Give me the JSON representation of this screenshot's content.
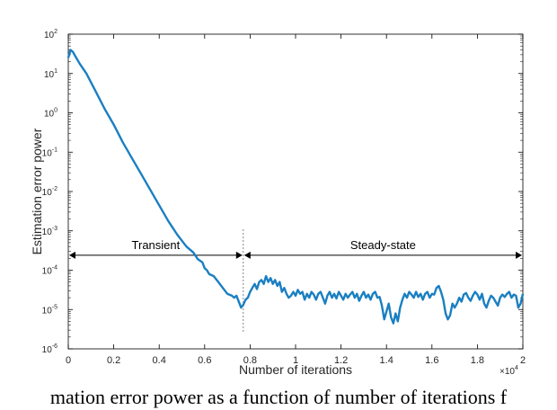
{
  "chart_data": {
    "type": "line",
    "xlabel": "Number of iterations",
    "ylabel": "Estimation error power",
    "x_scale_label": "×10",
    "x_scale_exp": "4",
    "xlim": [
      0,
      2
    ],
    "ylim_log10": [
      -6,
      2
    ],
    "y_scale": "log",
    "grid": false,
    "x_ticks": [
      "0",
      "0.2",
      "0.4",
      "0.6",
      "0.8",
      "1",
      "1.2",
      "1.4",
      "1.6",
      "1.8",
      "2"
    ],
    "y_ticks": [
      {
        "exp": 2
      },
      {
        "exp": 1
      },
      {
        "exp": 0
      },
      {
        "exp": -1
      },
      {
        "exp": -2
      },
      {
        "exp": -3
      },
      {
        "exp": -4
      },
      {
        "exp": -5
      },
      {
        "exp": -6
      }
    ],
    "line_color": "#1a7fc1",
    "annotations": {
      "transient_label": "Transient",
      "steady_label": "Steady-state",
      "divider_x": 0.77,
      "arrow_y_log10": -3.62
    },
    "series": [
      {
        "points": [
          [
            0.0,
            1.4
          ],
          [
            0.01,
            1.6
          ],
          [
            0.02,
            1.55
          ],
          [
            0.03,
            1.45
          ],
          [
            0.05,
            1.25
          ],
          [
            0.08,
            1.0
          ],
          [
            0.12,
            0.55
          ],
          [
            0.16,
            0.1
          ],
          [
            0.2,
            -0.3
          ],
          [
            0.24,
            -0.75
          ],
          [
            0.28,
            -1.15
          ],
          [
            0.32,
            -1.55
          ],
          [
            0.36,
            -1.95
          ],
          [
            0.4,
            -2.35
          ],
          [
            0.44,
            -2.75
          ],
          [
            0.48,
            -3.1
          ],
          [
            0.52,
            -3.4
          ],
          [
            0.55,
            -3.55
          ],
          [
            0.57,
            -3.72
          ],
          [
            0.59,
            -3.8
          ],
          [
            0.6,
            -3.95
          ],
          [
            0.61,
            -4.0
          ],
          [
            0.62,
            -4.1
          ],
          [
            0.64,
            -4.15
          ],
          [
            0.66,
            -4.3
          ],
          [
            0.68,
            -4.45
          ],
          [
            0.7,
            -4.6
          ],
          [
            0.72,
            -4.65
          ],
          [
            0.73,
            -4.7
          ],
          [
            0.74,
            -4.65
          ],
          [
            0.75,
            -4.8
          ],
          [
            0.76,
            -4.95
          ],
          [
            0.77,
            -4.88
          ],
          [
            0.78,
            -4.75
          ],
          [
            0.79,
            -4.7
          ],
          [
            0.8,
            -4.55
          ],
          [
            0.81,
            -4.45
          ],
          [
            0.82,
            -4.35
          ],
          [
            0.83,
            -4.48
          ],
          [
            0.84,
            -4.3
          ],
          [
            0.85,
            -4.25
          ],
          [
            0.86,
            -4.35
          ],
          [
            0.87,
            -4.15
          ],
          [
            0.88,
            -4.3
          ],
          [
            0.89,
            -4.2
          ],
          [
            0.9,
            -4.35
          ],
          [
            0.91,
            -4.25
          ],
          [
            0.92,
            -4.4
          ],
          [
            0.93,
            -4.3
          ],
          [
            0.94,
            -4.55
          ],
          [
            0.95,
            -4.45
          ],
          [
            0.96,
            -4.6
          ],
          [
            0.97,
            -4.7
          ],
          [
            0.98,
            -4.65
          ],
          [
            0.99,
            -4.55
          ],
          [
            1.0,
            -4.65
          ],
          [
            1.01,
            -4.5
          ],
          [
            1.02,
            -4.6
          ],
          [
            1.03,
            -4.55
          ],
          [
            1.04,
            -4.75
          ],
          [
            1.05,
            -4.6
          ],
          [
            1.06,
            -4.7
          ],
          [
            1.07,
            -4.55
          ],
          [
            1.08,
            -4.62
          ],
          [
            1.09,
            -4.75
          ],
          [
            1.1,
            -4.6
          ],
          [
            1.11,
            -4.55
          ],
          [
            1.12,
            -4.7
          ],
          [
            1.13,
            -4.85
          ],
          [
            1.14,
            -4.65
          ],
          [
            1.15,
            -4.55
          ],
          [
            1.16,
            -4.7
          ],
          [
            1.17,
            -4.6
          ],
          [
            1.18,
            -4.72
          ],
          [
            1.19,
            -4.55
          ],
          [
            1.2,
            -4.65
          ],
          [
            1.21,
            -4.75
          ],
          [
            1.22,
            -4.6
          ],
          [
            1.23,
            -4.7
          ],
          [
            1.24,
            -4.62
          ],
          [
            1.25,
            -4.55
          ],
          [
            1.26,
            -4.7
          ],
          [
            1.27,
            -4.6
          ],
          [
            1.28,
            -4.78
          ],
          [
            1.29,
            -4.65
          ],
          [
            1.3,
            -4.55
          ],
          [
            1.31,
            -4.7
          ],
          [
            1.32,
            -4.62
          ],
          [
            1.33,
            -4.75
          ],
          [
            1.34,
            -4.6
          ],
          [
            1.35,
            -4.55
          ],
          [
            1.36,
            -4.7
          ],
          [
            1.37,
            -4.68
          ],
          [
            1.38,
            -4.9
          ],
          [
            1.39,
            -5.25
          ],
          [
            1.4,
            -5.05
          ],
          [
            1.41,
            -4.85
          ],
          [
            1.42,
            -5.2
          ],
          [
            1.43,
            -5.35
          ],
          [
            1.44,
            -5.1
          ],
          [
            1.45,
            -5.3
          ],
          [
            1.46,
            -4.95
          ],
          [
            1.47,
            -4.75
          ],
          [
            1.48,
            -4.6
          ],
          [
            1.49,
            -4.7
          ],
          [
            1.5,
            -4.55
          ],
          [
            1.51,
            -4.62
          ],
          [
            1.52,
            -4.7
          ],
          [
            1.53,
            -4.55
          ],
          [
            1.54,
            -4.68
          ],
          [
            1.55,
            -4.6
          ],
          [
            1.56,
            -4.75
          ],
          [
            1.57,
            -4.6
          ],
          [
            1.58,
            -4.55
          ],
          [
            1.59,
            -4.7
          ],
          [
            1.6,
            -4.6
          ],
          [
            1.61,
            -4.62
          ],
          [
            1.62,
            -4.45
          ],
          [
            1.63,
            -4.4
          ],
          [
            1.64,
            -4.55
          ],
          [
            1.65,
            -4.75
          ],
          [
            1.66,
            -5.1
          ],
          [
            1.67,
            -5.25
          ],
          [
            1.68,
            -5.15
          ],
          [
            1.69,
            -4.85
          ],
          [
            1.7,
            -4.95
          ],
          [
            1.71,
            -4.85
          ],
          [
            1.72,
            -4.7
          ],
          [
            1.73,
            -4.8
          ],
          [
            1.74,
            -4.62
          ],
          [
            1.75,
            -4.58
          ],
          [
            1.76,
            -4.7
          ],
          [
            1.77,
            -4.78
          ],
          [
            1.78,
            -4.65
          ],
          [
            1.79,
            -4.55
          ],
          [
            1.8,
            -4.62
          ],
          [
            1.81,
            -4.75
          ],
          [
            1.82,
            -4.6
          ],
          [
            1.83,
            -4.85
          ],
          [
            1.84,
            -4.95
          ],
          [
            1.85,
            -4.78
          ],
          [
            1.86,
            -4.65
          ],
          [
            1.87,
            -4.7
          ],
          [
            1.88,
            -4.8
          ],
          [
            1.89,
            -4.9
          ],
          [
            1.9,
            -4.7
          ],
          [
            1.91,
            -4.62
          ],
          [
            1.92,
            -4.68
          ],
          [
            1.93,
            -4.6
          ],
          [
            1.94,
            -4.55
          ],
          [
            1.95,
            -4.7
          ],
          [
            1.96,
            -4.62
          ],
          [
            1.97,
            -4.65
          ],
          [
            1.98,
            -4.95
          ],
          [
            1.99,
            -4.85
          ],
          [
            2.0,
            -4.6
          ]
        ]
      }
    ]
  },
  "caption": "mation error power as a function of number of iterations f"
}
